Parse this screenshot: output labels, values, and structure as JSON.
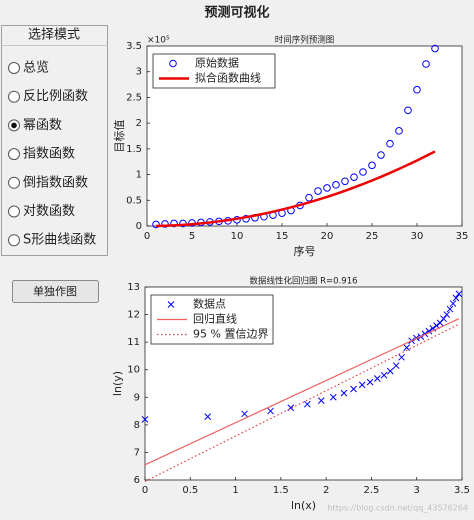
{
  "window": {
    "title": "预测可视化"
  },
  "panel": {
    "title": "选择模式",
    "options": [
      "总览",
      "反比例函数",
      "幂函数",
      "指数函数",
      "倒指数函数",
      "对数函数",
      "S形曲线函数"
    ],
    "selected": 2
  },
  "button": {
    "label": "单独作图"
  },
  "watermark": "https://blog.csdn.net/qq_43576264",
  "chart_data": [
    {
      "type": "line",
      "title": "时间序列预测图",
      "xlabel": "序号",
      "ylabel": "目标值",
      "y_exponent": "×10⁵",
      "x": [
        1,
        2,
        3,
        4,
        5,
        6,
        7,
        8,
        9,
        10,
        11,
        12,
        13,
        14,
        15,
        16,
        17,
        18,
        19,
        20,
        21,
        22,
        23,
        24,
        25,
        26,
        27,
        28,
        29,
        30,
        31,
        32
      ],
      "xlim": [
        0,
        35
      ],
      "xticks": [
        0,
        5,
        10,
        15,
        20,
        25,
        30,
        35
      ],
      "ylim": [
        0,
        3.5
      ],
      "yticks": [
        0,
        0.5,
        1,
        1.5,
        2,
        2.5,
        3,
        3.5
      ],
      "legend": "upper left",
      "series": [
        {
          "name": "原始数据",
          "color": "#0000ff",
          "style": "markers",
          "marker": "circle",
          "values": [
            0.03,
            0.04,
            0.05,
            0.05,
            0.06,
            0.07,
            0.08,
            0.09,
            0.1,
            0.12,
            0.14,
            0.16,
            0.18,
            0.21,
            0.25,
            0.3,
            0.4,
            0.55,
            0.68,
            0.74,
            0.8,
            0.87,
            0.95,
            1.05,
            1.18,
            1.38,
            1.6,
            1.85,
            2.25,
            2.65,
            3.15,
            3.45
          ]
        },
        {
          "name": "拟合函数曲线",
          "color": "#ee0000",
          "style": "line",
          "dash": "solid",
          "width": 2.5,
          "values": [
            0.001,
            0.006,
            0.013,
            0.023,
            0.035,
            0.051,
            0.069,
            0.091,
            0.115,
            0.142,
            0.171,
            0.204,
            0.239,
            0.278,
            0.319,
            0.363,
            0.409,
            0.459,
            0.511,
            0.566,
            0.624,
            0.685,
            0.749,
            0.816,
            0.885,
            0.957,
            1.032,
            1.11,
            1.191,
            1.274,
            1.361,
            1.45
          ]
        }
      ]
    },
    {
      "type": "line",
      "title": "数据线性化回归图 R=0.916",
      "xlabel": "ln(x)",
      "ylabel": "ln(y)",
      "xlim": [
        0,
        3.5
      ],
      "xticks": [
        0,
        0.5,
        1,
        1.5,
        2,
        2.5,
        3,
        3.5
      ],
      "ylim": [
        6,
        13
      ],
      "yticks": [
        6,
        7,
        8,
        9,
        10,
        11,
        12,
        13
      ],
      "legend": "upper left",
      "series": [
        {
          "name": "数据点",
          "color": "#0000ff",
          "style": "markers",
          "marker": "x",
          "x": [
            0,
            0.693,
            1.099,
            1.386,
            1.609,
            1.792,
            1.946,
            2.079,
            2.197,
            2.303,
            2.398,
            2.485,
            2.565,
            2.639,
            2.708,
            2.773,
            2.833,
            2.89,
            2.944,
            2.996,
            3.045,
            3.091,
            3.135,
            3.178,
            3.219,
            3.258,
            3.296,
            3.332,
            3.367,
            3.401,
            3.434,
            3.466
          ],
          "values": [
            8.2,
            8.3,
            8.4,
            8.5,
            8.62,
            8.75,
            8.88,
            9.0,
            9.15,
            9.3,
            9.45,
            9.55,
            9.68,
            9.8,
            9.95,
            10.15,
            10.45,
            10.8,
            11.05,
            11.15,
            11.2,
            11.3,
            11.4,
            11.5,
            11.6,
            11.7,
            11.85,
            12.0,
            12.2,
            12.4,
            12.6,
            12.75
          ]
        },
        {
          "name": "回归直线",
          "color": "#f06060",
          "style": "line",
          "dash": "solid",
          "width": 1.2,
          "x": [
            0,
            3.466
          ],
          "values": [
            6.55,
            11.85
          ]
        },
        {
          "name": "95 % 置信边界",
          "color": "#e04040",
          "style": "line",
          "dash": "dotted",
          "width": 1.2,
          "x": [
            0,
            3.466
          ],
          "values": [
            5.95,
            11.65
          ]
        }
      ]
    }
  ]
}
